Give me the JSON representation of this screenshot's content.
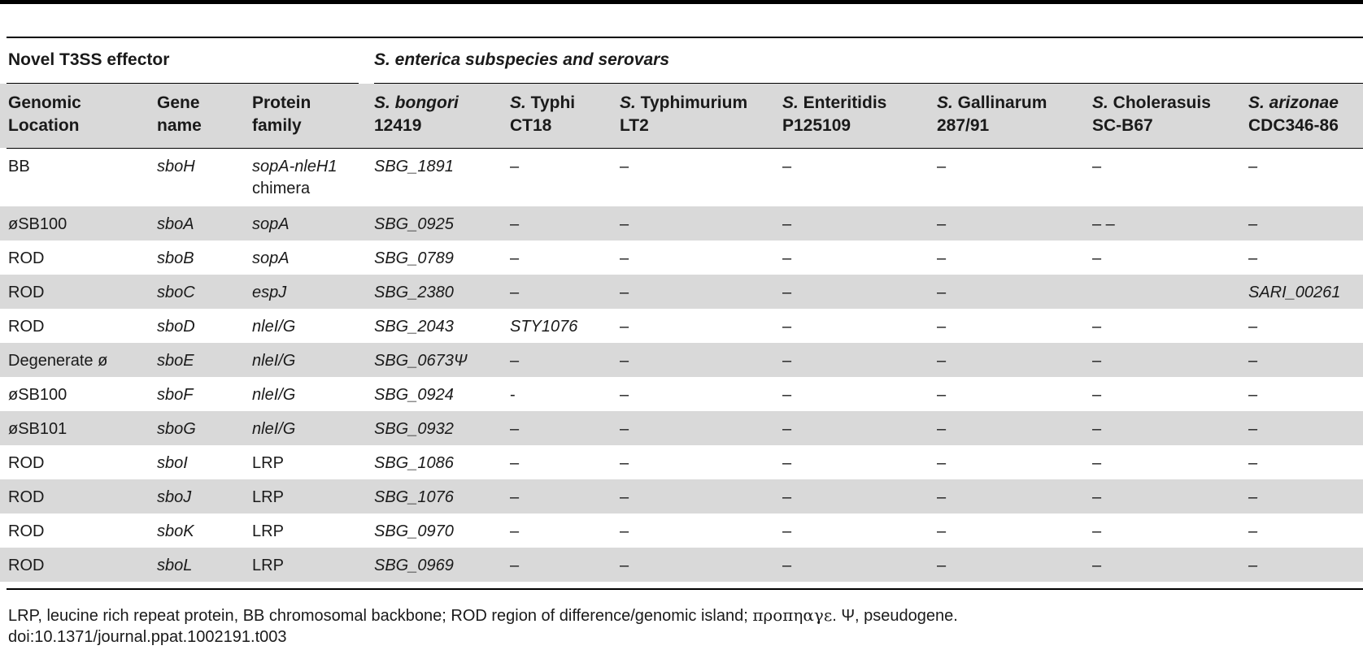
{
  "group_headers": {
    "left": "Novel T3SS effector",
    "right": "S. enterica subspecies and serovars"
  },
  "columns": [
    {
      "line1_italic": "",
      "line1": "Genomic",
      "line2": "Location"
    },
    {
      "line1_italic": "",
      "line1": "Gene",
      "line2": "name"
    },
    {
      "line1_italic": "",
      "line1": "Protein",
      "line2": "family"
    },
    {
      "line1_italic": "S. bongori",
      "line1": "",
      "line2": "12419"
    },
    {
      "line1_italic": "S.",
      "line1": " Typhi",
      "line2": "CT18"
    },
    {
      "line1_italic": "S.",
      "line1": " Typhimurium",
      "line2": "LT2"
    },
    {
      "line1_italic": "S.",
      "line1": " Enteritidis",
      "line2": "P125109"
    },
    {
      "line1_italic": "S.",
      "line1": " Gallinarum",
      "line2": "287/91"
    },
    {
      "line1_italic": "S.",
      "line1": " Cholerasuis",
      "line2": "SC-B67"
    },
    {
      "line1_italic": "S. arizonae",
      "line1": "",
      "line2": "CDC346-86"
    }
  ],
  "rows": [
    {
      "cells": [
        "BB",
        "sboH",
        "sopA-nleH1",
        "SBG_1891",
        "–",
        "–",
        "–",
        "–",
        "–",
        "–"
      ],
      "family_extra": "chimera"
    },
    {
      "cells": [
        "øSB100",
        "sboA",
        "sopA",
        "SBG_0925",
        "–",
        "–",
        "–",
        "–",
        "– –",
        "–"
      ]
    },
    {
      "cells": [
        "ROD",
        "sboB",
        "sopA",
        "SBG_0789",
        "–",
        "–",
        "–",
        "–",
        "–",
        "–"
      ]
    },
    {
      "cells": [
        "ROD",
        "sboC",
        "espJ",
        "SBG_2380",
        "–",
        "–",
        "–",
        "–",
        "",
        "SARI_00261"
      ]
    },
    {
      "cells": [
        "ROD",
        "sboD",
        "nleI/G",
        "SBG_2043",
        "STY1076",
        "–",
        "–",
        "–",
        "–",
        "–"
      ]
    },
    {
      "cells": [
        "Degenerate ø",
        "sboE",
        "nleI/G",
        "SBG_0673Ψ",
        "–",
        "–",
        "–",
        "–",
        "–",
        "–"
      ]
    },
    {
      "cells": [
        "øSB100",
        "sboF",
        "nleI/G",
        "SBG_0924",
        "-",
        "–",
        "–",
        "–",
        "–",
        "–"
      ]
    },
    {
      "cells": [
        "øSB101",
        "sboG",
        "nleI/G",
        "SBG_0932",
        "–",
        "–",
        "–",
        "–",
        "–",
        "–"
      ]
    },
    {
      "cells": [
        "ROD",
        "sboI",
        "LRP",
        "SBG_1086",
        "–",
        "–",
        "–",
        "–",
        "–",
        "–"
      ]
    },
    {
      "cells": [
        "ROD",
        "sboJ",
        "LRP",
        "SBG_1076",
        "–",
        "–",
        "–",
        "–",
        "–",
        "–"
      ]
    },
    {
      "cells": [
        "ROD",
        "sboK",
        "LRP",
        "SBG_0970",
        "–",
        "–",
        "–",
        "–",
        "–",
        "–"
      ]
    },
    {
      "cells": [
        "ROD",
        "sboL",
        "LRP",
        "SBG_0969",
        "–",
        "–",
        "–",
        "–",
        "–",
        "–"
      ]
    }
  ],
  "italic_columns": [
    1,
    3,
    9
  ],
  "italic_family_values": [
    "sopA-nleH1",
    "sopA",
    "espJ",
    "nleI/G"
  ],
  "footnote_text": "LRP, leucine rich repeat protein, BB chromosomal backbone; ROD region of difference/genomic island; ",
  "footnote_greek": "προπηαγε",
  "footnote_tail": ". Ψ, pseudogene.",
  "doi": "doi:10.1371/journal.ppat.1002191.t003"
}
